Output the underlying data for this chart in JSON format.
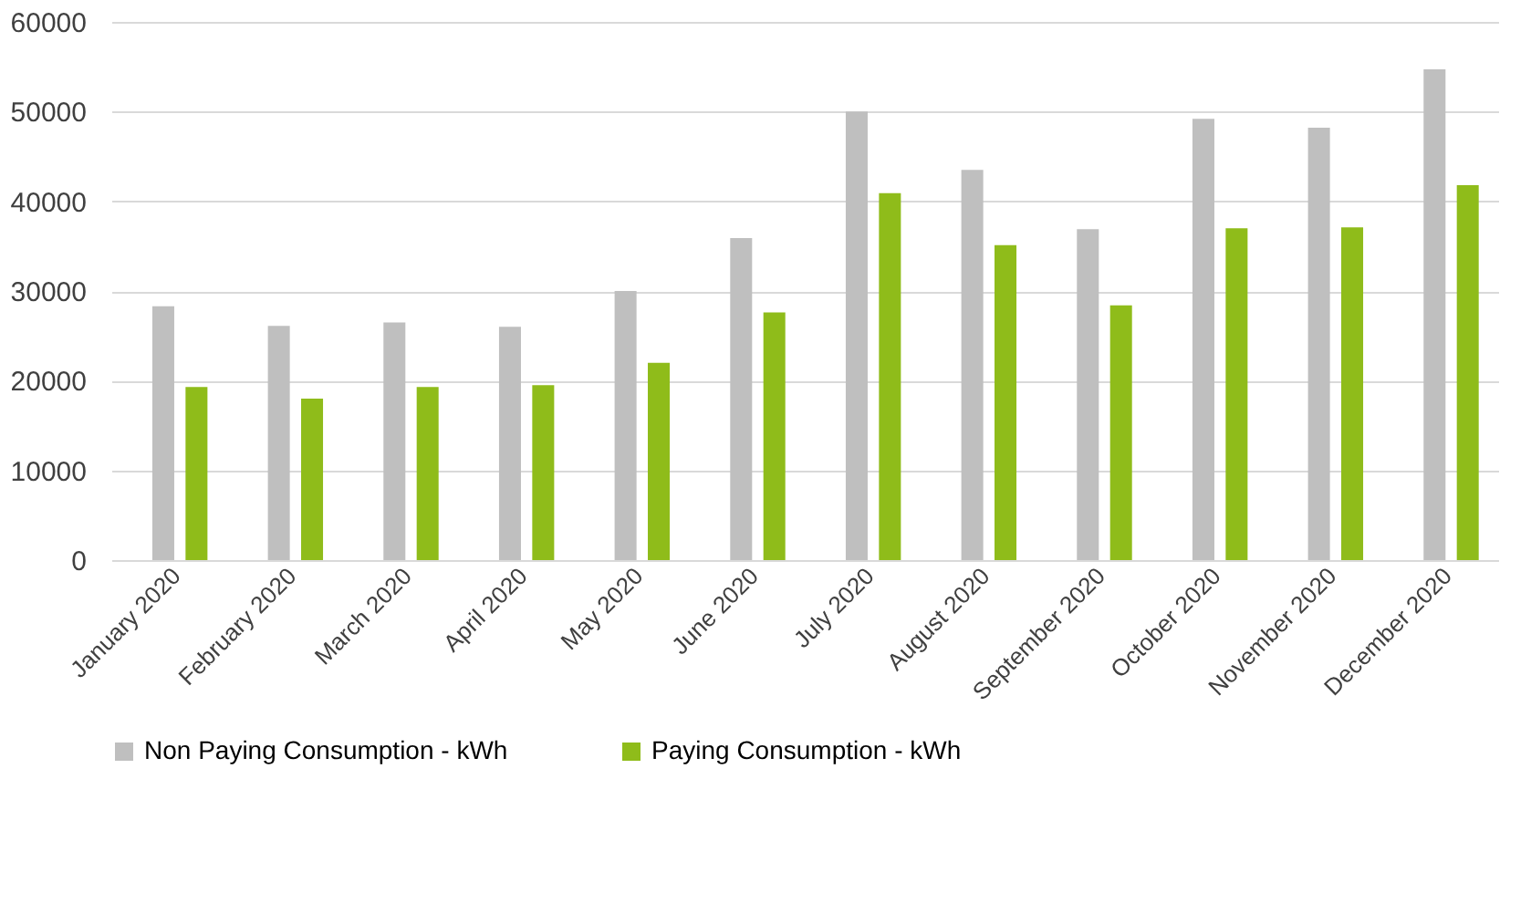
{
  "chart_data": {
    "type": "bar",
    "categories": [
      "January 2020",
      "February 2020",
      "March 2020",
      "April 2020",
      "May 2020",
      "June 2020",
      "July 2020",
      "August 2020",
      "September 2020",
      "October 2020",
      "November 2020",
      "December 2020"
    ],
    "series": [
      {
        "name": "Non Paying Consumption - kWh",
        "color": "#bfbfbf",
        "values": [
          28300,
          26100,
          26500,
          26000,
          30000,
          35900,
          50000,
          43500,
          36900,
          49200,
          48200,
          54700
        ]
      },
      {
        "name": "Paying Consumption - kWh",
        "color": "#8fbc1a",
        "values": [
          19300,
          18000,
          19300,
          19500,
          22000,
          27600,
          40900,
          35100,
          28400,
          37000,
          37100,
          41800
        ]
      }
    ],
    "ylim": [
      0,
      60000
    ],
    "yticks": [
      0,
      10000,
      20000,
      30000,
      40000,
      50000,
      60000
    ],
    "grid": "y",
    "legend": "bottom"
  }
}
